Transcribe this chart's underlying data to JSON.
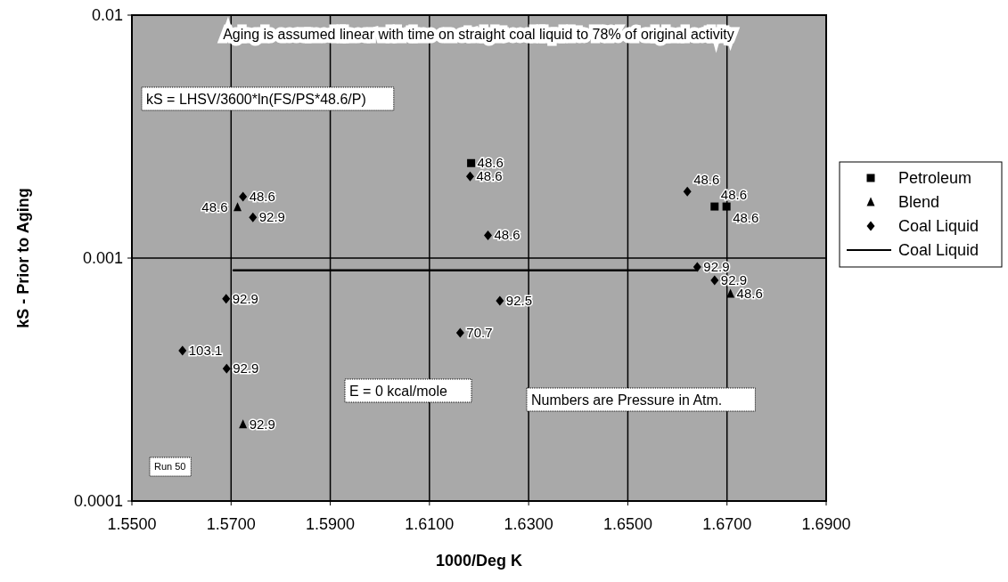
{
  "chart_data": {
    "type": "scatter",
    "xlabel": "1000/Deg K",
    "ylabel": "kS - Prior to Aging",
    "log": "y",
    "xlim": [
      1.55,
      1.69
    ],
    "xticks": [
      {
        "value": 1.55,
        "label": "1.5500"
      },
      {
        "value": 1.57,
        "label": "1.5700"
      },
      {
        "value": 1.59,
        "label": "1.5900"
      },
      {
        "value": 1.61,
        "label": "1.6100"
      },
      {
        "value": 1.63,
        "label": "1.6300"
      },
      {
        "value": 1.65,
        "label": "1.6500"
      },
      {
        "value": 1.67,
        "label": "1.6700"
      },
      {
        "value": 1.69,
        "label": "1.6900"
      }
    ],
    "ylim": [
      0.0001,
      0.01
    ],
    "yticks": [
      0.0001,
      0.001,
      0.01
    ],
    "grid": true,
    "legend": "right",
    "annotations": [
      "Aging is assumed linear with time on straight coal liquid to 78% of original activity",
      "kS = LHSV/3600*ln(FS/PS*48.6/P)",
      "E = 0 kcal/mole",
      "Numbers are Pressure in Atm.",
      "Run 50",
      {
        "text": "48.6",
        "x": 1.6184,
        "y": 0.00246
      },
      {
        "text": "48.6",
        "x": 1.6675,
        "y": 0.00163
      },
      {
        "text": "48.6",
        "x": 1.6699,
        "y": 0.00163
      },
      {
        "text": "48.6",
        "x": 1.5713,
        "y": 0.00162
      },
      {
        "text": "92.9",
        "x": 1.5724,
        "y": 0.000207
      },
      {
        "text": "48.6",
        "x": 1.6707,
        "y": 0.000714
      },
      {
        "text": "48.6",
        "x": 1.5724,
        "y": 0.00179
      },
      {
        "text": "92.9",
        "x": 1.5744,
        "y": 0.00147
      },
      {
        "text": "48.6",
        "x": 1.6182,
        "y": 0.00217
      },
      {
        "text": "48.6",
        "x": 1.6218,
        "y": 0.00124
      },
      {
        "text": "48.6",
        "x": 1.662,
        "y": 0.00188
      },
      {
        "text": "92.9",
        "x": 1.664,
        "y": 0.00092
      },
      {
        "text": "92.9",
        "x": 1.6675,
        "y": 0.00081
      },
      {
        "text": "92.9",
        "x": 1.569,
        "y": 0.00068
      },
      {
        "text": "103.1",
        "x": 1.5602,
        "y": 0.000416
      },
      {
        "text": "92.9",
        "x": 1.5691,
        "y": 0.000351
      },
      {
        "text": "92.5",
        "x": 1.6242,
        "y": 0.000667
      },
      {
        "text": "70.7",
        "x": 1.6162,
        "y": 0.000492
      }
    ],
    "series": [
      {
        "name": "Petroleum",
        "marker": "square",
        "color": "#000000",
        "x": [
          1.6184,
          1.6675,
          1.6699
        ],
        "values": [
          0.00246,
          0.00163,
          0.00163
        ]
      },
      {
        "name": "Blend",
        "marker": "triangle",
        "color": "#000000",
        "x": [
          1.5713,
          1.5724,
          1.6707
        ],
        "values": [
          0.00162,
          0.000207,
          0.000714
        ]
      },
      {
        "name": "Coal Liquid",
        "marker": "diamond",
        "color": "#000000",
        "x": [
          1.5724,
          1.5744,
          1.6182,
          1.6218,
          1.662,
          1.664,
          1.6675,
          1.569,
          1.5602,
          1.5691,
          1.6242,
          1.6162
        ],
        "values": [
          0.00179,
          0.00147,
          0.00217,
          0.00124,
          0.00188,
          0.00092,
          0.00081,
          0.00068,
          0.000416,
          0.000351,
          0.000667,
          0.000492
        ]
      },
      {
        "name": "Coal Liquid",
        "type": "line",
        "marker": "none",
        "line_style": "solid",
        "color": "#000000",
        "x": [
          1.5705,
          1.664
        ],
        "values": [
          0.00089,
          0.00089
        ]
      }
    ]
  }
}
